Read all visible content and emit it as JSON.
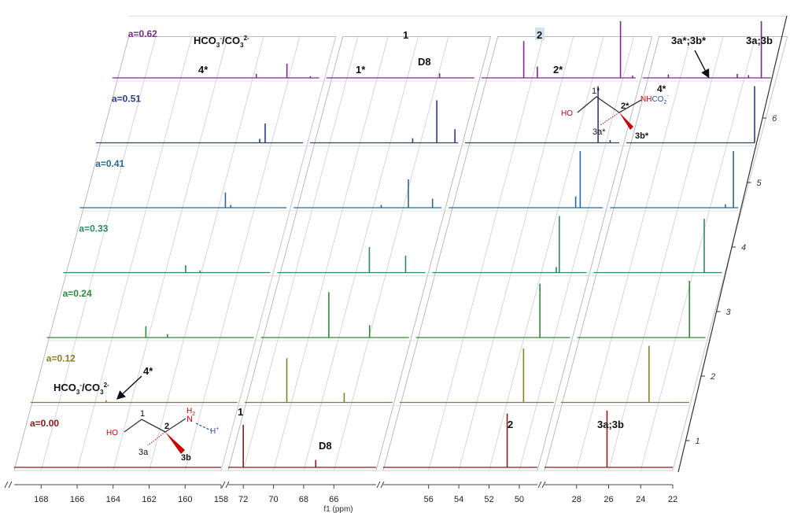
{
  "chart_data": {
    "type": "line",
    "style": "stacked-3D NMR spectra (pseudo-2D plot), broken x-axis",
    "xlabel": "f1 (ppm)",
    "x_axis_reversed": true,
    "x_segments": [
      {
        "range": [
          169.5,
          158
        ],
        "ticks": [
          "168",
          "166",
          "164",
          "162",
          "160",
          "158"
        ]
      },
      {
        "range": [
          73,
          63.2
        ],
        "ticks": [
          "72",
          "70",
          "68",
          "66"
        ]
      },
      {
        "range": [
          59,
          48.8
        ],
        "ticks": [
          "56",
          "54",
          "52",
          "50"
        ]
      },
      {
        "range": [
          30,
          22
        ],
        "ticks": [
          "28",
          "26",
          "24",
          "22"
        ]
      }
    ],
    "depth_ticks": [
      "1",
      "2",
      "3",
      "4",
      "5",
      "6"
    ],
    "grid": true,
    "series": [
      {
        "name": "a=0.00",
        "color": "#8b1a1a",
        "peaks": [
          [
            72.0,
            0.75
          ],
          [
            67.2,
            0.13
          ],
          [
            50.8,
            0.95
          ],
          [
            26.1,
            1.0
          ]
        ]
      },
      {
        "name": "a=0.12",
        "color": "#8a7d2a",
        "peaks": [
          [
            165.3,
            0.04
          ],
          [
            70.2,
            0.78
          ],
          [
            66.4,
            0.17
          ],
          [
            50.8,
            0.95
          ],
          [
            24.5,
            1.0
          ]
        ]
      },
      {
        "name": "a=0.24",
        "color": "#2e8a3a",
        "peaks": [
          [
            164.0,
            0.2
          ],
          [
            162.8,
            0.06
          ],
          [
            68.5,
            0.8
          ],
          [
            65.8,
            0.22
          ],
          [
            50.8,
            0.95
          ],
          [
            23.0,
            1.0
          ]
        ]
      },
      {
        "name": "a=0.33",
        "color": "#2a8a6a",
        "peaks": [
          [
            162.7,
            0.13
          ],
          [
            161.9,
            0.04
          ],
          [
            66.9,
            0.45
          ],
          [
            64.5,
            0.3
          ],
          [
            50.6,
            1.0
          ],
          [
            50.8,
            0.1
          ],
          [
            23.1,
            0.95
          ],
          [
            21.5,
            0.75
          ],
          [
            21.7,
            0.06
          ]
        ]
      },
      {
        "name": "a=0.41",
        "color": "#2a6a9a",
        "peaks": [
          [
            161.4,
            0.27
          ],
          [
            161.1,
            0.05
          ],
          [
            67.2,
            0.05
          ],
          [
            65.4,
            0.5
          ],
          [
            63.8,
            0.16
          ],
          [
            50.3,
            1.0
          ],
          [
            50.6,
            0.2
          ],
          [
            22.3,
            1.0
          ],
          [
            22.8,
            0.06
          ]
        ]
      },
      {
        "name": "a=0.51",
        "color": "#2e3a8a",
        "peaks": [
          [
            160.1,
            0.34
          ],
          [
            160.4,
            0.07
          ],
          [
            66.2,
            0.08
          ],
          [
            64.6,
            0.75
          ],
          [
            63.4,
            0.24
          ],
          [
            50.2,
            1.0
          ],
          [
            49.4,
            0.05
          ],
          [
            22.0,
            1.0
          ]
        ]
      },
      {
        "name": "a=0.62",
        "color": "#7a2a8a",
        "peaks": [
          [
            161.5,
            0.07
          ],
          [
            159.8,
            0.25
          ],
          [
            158.5,
            0.03
          ],
          [
            65.5,
            0.08
          ],
          [
            56.2,
            0.65
          ],
          [
            55.3,
            0.2
          ],
          [
            49.8,
            1.0
          ],
          [
            49.0,
            0.04
          ],
          [
            28.4,
            0.06
          ],
          [
            24.1,
            0.07
          ],
          [
            22.6,
            1.0
          ],
          [
            23.4,
            0.05
          ]
        ]
      }
    ]
  },
  "annotations": {
    "hco3_top_base": "HCO",
    "hco3_top_sub1": "3",
    "hco3_top_sup1": "-",
    "hco3_top_mid": "/CO",
    "hco3_top_sub2": "3",
    "hco3_top_sup2": "2-",
    "hco3_bot_base": "HCO",
    "hco3_bot_sub1": "3",
    "hco3_bot_sup1": "-",
    "hco3_bot_mid": "/CO",
    "hco3_bot_sub2": "3",
    "hco3_bot_sup2": "2-",
    "top_4star": "4*",
    "top_1star": "1*",
    "top_1": "1",
    "top_D8": "D8",
    "top_2": "2",
    "top_2star": "2*",
    "top_3ab_star": "3a*;3b*",
    "top_3ab": "3a;3b",
    "bot_4star": "4*",
    "bot_1": "1",
    "bot_D8": "D8",
    "bot_2": "2",
    "bot_3ab": "3a;3b"
  },
  "structures": {
    "carbamate": {
      "HO": "HO",
      "c1": "1*",
      "c2": "2*",
      "NH": "NH",
      "CO2": "CO",
      "CO2_sub": "2",
      "CO2_sup": "-",
      "c3a": "3a*",
      "c3b": "3b*",
      "c4": "4*"
    },
    "amine": {
      "HO": "HO",
      "c1": "1",
      "c2": "2",
      "N": "N",
      "H2": "H",
      "H2_sub": "2",
      "Hplus": "H",
      "Hplus_sup": "+",
      "c3a": "3a",
      "c3b": "3b"
    }
  }
}
